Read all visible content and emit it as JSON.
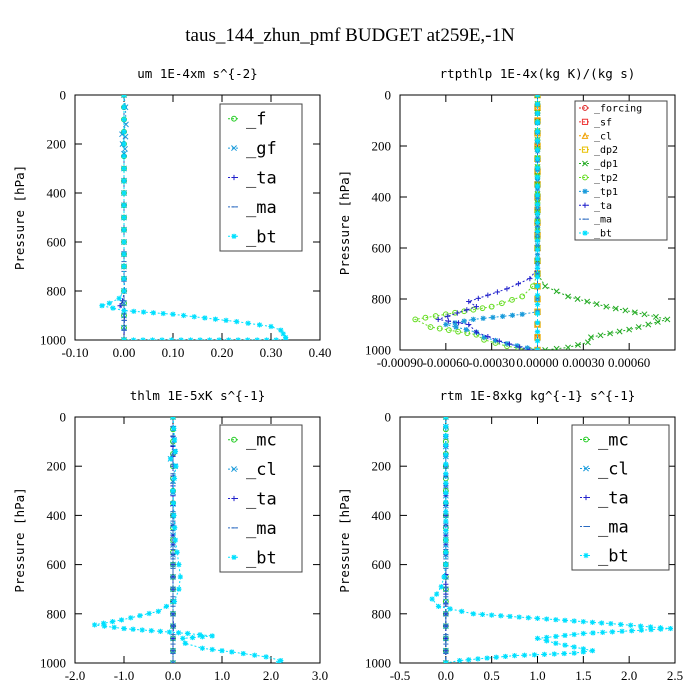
{
  "figure_title": "taus_144_zhun_pmf  BUDGET at259E,-1N",
  "colors": {
    "f": "#22cc22",
    "gf": "#1a9bdb",
    "ta": "#2222cc",
    "ma": "#2a6ac0",
    "bt": "#00e0ff",
    "forcing": "#dd2222",
    "sf": "#ee3333",
    "cl": "#f0a000",
    "dp2": "#e8c000",
    "dp1": "#22aa22",
    "tp2": "#66dd22",
    "tp1": "#1a9bdb",
    "mc": "#22cc22"
  },
  "chart_data": [
    {
      "type": "line",
      "title": "um  1E-4xm s^{-2}",
      "ylabel": "Pressure [hPa]",
      "xlim": [
        -0.1,
        0.4
      ],
      "ylim": [
        1000,
        0
      ],
      "xticks": [
        "-0.10",
        "0.00",
        "0.10",
        "0.20",
        "0.30",
        "0.40"
      ],
      "xtick_values": [
        -0.1,
        0.0,
        0.1,
        0.2,
        0.3,
        0.4
      ],
      "yticks": [
        "0",
        "200",
        "400",
        "600",
        "800",
        "1000"
      ],
      "yticks_values": [
        0,
        200,
        400,
        600,
        800,
        1000
      ],
      "legend": [
        "_f",
        "_gf",
        "_ta",
        "_ma",
        "_bt"
      ],
      "legend_size": "large",
      "series": [
        {
          "name": "_f",
          "color": "#22cc22",
          "marker": "o",
          "x": [
            0,
            0,
            0,
            0,
            0,
            0,
            0,
            0,
            0,
            0,
            0
          ],
          "y": [
            0,
            100,
            200,
            300,
            400,
            500,
            600,
            700,
            800,
            900,
            1000
          ]
        },
        {
          "name": "_gf",
          "color": "#1a9bdb",
          "marker": "x",
          "x": [
            0,
            0.003,
            0.004,
            -0.004,
            0.003,
            -0.003,
            0.002,
            0,
            0,
            0,
            0,
            0,
            0,
            0,
            0,
            0,
            0,
            0
          ],
          "y": [
            0,
            50,
            120,
            160,
            170,
            200,
            220,
            240,
            300,
            400,
            500,
            600,
            700,
            800,
            850,
            900,
            950,
            1000
          ]
        },
        {
          "name": "_ta",
          "color": "#2222cc",
          "marker": "+",
          "x": [
            0,
            0,
            0,
            0,
            0,
            0,
            0,
            0,
            0.001,
            -0.003,
            -0.008,
            0.001,
            0.0
          ],
          "y": [
            0,
            100,
            200,
            300,
            400,
            500,
            600,
            700,
            800,
            840,
            860,
            880,
            1000
          ]
        },
        {
          "name": "_ma",
          "color": "#2a6ac0",
          "marker": "-",
          "x": [
            0,
            0,
            0,
            0,
            0,
            0,
            0,
            0,
            0
          ],
          "y": [
            0,
            100,
            200,
            300,
            400,
            500,
            600,
            800,
            1000
          ]
        },
        {
          "name": "_bt",
          "color": "#00e0ff",
          "marker": "*",
          "x": [
            0,
            0,
            0,
            0,
            0,
            0,
            0,
            0,
            0.0,
            -0.01,
            -0.03,
            -0.045,
            0.0,
            0.1,
            0.165,
            0.23,
            0.3,
            0.32,
            0.325,
            0.33,
            0.33,
            0.0
          ],
          "y": [
            0,
            100,
            200,
            300,
            400,
            500,
            600,
            700,
            800,
            830,
            850,
            860,
            880,
            895,
            910,
            925,
            945,
            960,
            975,
            990,
            1000,
            1000
          ]
        }
      ]
    },
    {
      "type": "line",
      "title": "rtpthlp  1E-4x(kg K)/(kg s)",
      "ylabel": "Pressure [hPa]",
      "xlim": [
        -0.0009,
        0.0009
      ],
      "ylim": [
        1000,
        0
      ],
      "xticks": [
        "-0.00090",
        "-0.00060",
        "-0.00030",
        "0.00000",
        "0.00030",
        "0.00060"
      ],
      "xtick_values": [
        -0.0009,
        -0.0006,
        -0.0003,
        0.0,
        0.0003,
        0.0006
      ],
      "yticks": [
        "0",
        "200",
        "400",
        "600",
        "800",
        "1000"
      ],
      "yticks_values": [
        0,
        200,
        400,
        600,
        800,
        1000
      ],
      "legend": [
        "_forcing",
        "_sf",
        "_cl",
        "_dp2",
        "_dp1",
        "_tp2",
        "_tp1",
        "_ta",
        "_ma",
        "_bt"
      ],
      "legend_size": "small",
      "series": [
        {
          "name": "_forcing",
          "color": "#dd2222",
          "marker": "o",
          "x": [
            0,
            0,
            0,
            0,
            0,
            0,
            0,
            0,
            0,
            0,
            0
          ],
          "y": [
            0,
            100,
            200,
            300,
            400,
            500,
            600,
            700,
            800,
            900,
            1000
          ]
        },
        {
          "name": "_sf",
          "color": "#ee3333",
          "marker": "s",
          "x": [
            0,
            0,
            0,
            0,
            0,
            0,
            0,
            0,
            0,
            0,
            0
          ],
          "y": [
            0,
            100,
            200,
            300,
            400,
            500,
            600,
            700,
            800,
            900,
            1000
          ]
        },
        {
          "name": "_cl",
          "color": "#f0a000",
          "marker": "^",
          "x": [
            0,
            0,
            0,
            0,
            0,
            0,
            0,
            0,
            0,
            0,
            0
          ],
          "y": [
            0,
            100,
            200,
            300,
            400,
            500,
            600,
            700,
            800,
            900,
            1000
          ]
        },
        {
          "name": "_dp2",
          "color": "#e8c000",
          "marker": "s",
          "x": [
            0,
            0,
            0,
            0,
            0,
            0,
            0,
            0,
            0,
            0,
            0
          ],
          "y": [
            0,
            100,
            200,
            300,
            400,
            500,
            600,
            700,
            800,
            900,
            1000
          ]
        },
        {
          "name": "_dp1",
          "color": "#22aa22",
          "marker": "x",
          "x": [
            0,
            0,
            0,
            5e-05,
            0.0002,
            0.00045,
            0.0007,
            0.00085,
            0.0006,
            0.00035,
            0.00033,
            0.0002,
            5e-05
          ],
          "y": [
            0,
            600,
            700,
            750,
            790,
            830,
            860,
            880,
            920,
            950,
            970,
            990,
            1000
          ]
        },
        {
          "name": "_tp2",
          "color": "#66dd22",
          "marker": "o",
          "x": [
            0,
            0,
            0,
            -3e-05,
            -0.0001,
            -0.0003,
            -0.0006,
            -0.0008,
            -0.0007,
            -0.0004,
            -0.00035,
            -0.0002,
            -5e-05
          ],
          "y": [
            0,
            600,
            700,
            750,
            790,
            830,
            860,
            880,
            910,
            940,
            960,
            985,
            1000
          ]
        },
        {
          "name": "_tp1",
          "color": "#1a9bdb",
          "marker": "*",
          "x": [
            0,
            0,
            0,
            0,
            -0.0001,
            -0.00042,
            -0.0006,
            -0.0004,
            -0.00035,
            -0.0002,
            0
          ],
          "y": [
            0,
            700,
            800,
            850,
            860,
            880,
            900,
            930,
            950,
            975,
            1000
          ]
        },
        {
          "name": "_ta",
          "color": "#2222cc",
          "marker": "+",
          "x": [
            0,
            0,
            -5e-05,
            -0.0002,
            -0.00045,
            -0.0004,
            -0.00065,
            -0.00045,
            -0.0004,
            -0.00025,
            -5e-05
          ],
          "y": [
            0,
            680,
            720,
            760,
            810,
            830,
            880,
            900,
            930,
            965,
            1000
          ]
        },
        {
          "name": "_ma",
          "color": "#2a6ac0",
          "marker": "-",
          "x": [
            0,
            0,
            0
          ],
          "y": [
            0,
            500,
            1000
          ]
        },
        {
          "name": "_bt",
          "color": "#00e0ff",
          "marker": "*",
          "x": [
            0,
            0,
            0
          ],
          "y": [
            0,
            500,
            1000
          ]
        }
      ]
    },
    {
      "type": "line",
      "title": "thlm  1E-5xK s^{-1}",
      "ylabel": "Pressure [hPa]",
      "xlim": [
        -2.0,
        3.0
      ],
      "ylim": [
        1000,
        0
      ],
      "xticks": [
        "-2.0",
        "-1.0",
        "0.0",
        "1.0",
        "2.0",
        "3.0"
      ],
      "xtick_values": [
        -2.0,
        -1.0,
        0.0,
        1.0,
        2.0,
        3.0
      ],
      "yticks": [
        "0",
        "200",
        "400",
        "600",
        "800",
        "1000"
      ],
      "yticks_values": [
        0,
        200,
        400,
        600,
        800,
        1000
      ],
      "legend": [
        "_mc",
        "_cl",
        "_ta",
        "_ma",
        "_bt"
      ],
      "legend_size": "large",
      "series": [
        {
          "name": "_mc",
          "color": "#22cc22",
          "marker": "o",
          "x": [
            0,
            0,
            0,
            0,
            0,
            0,
            0,
            0,
            0,
            0,
            0
          ],
          "y": [
            0,
            100,
            200,
            300,
            400,
            500,
            600,
            700,
            800,
            900,
            1000
          ]
        },
        {
          "name": "_cl",
          "color": "#1a9bdb",
          "marker": "x",
          "x": [
            0,
            0.03,
            -0.05,
            0.04,
            0,
            0,
            0,
            0,
            0,
            0,
            0
          ],
          "y": [
            0,
            140,
            170,
            200,
            260,
            400,
            600,
            700,
            800,
            900,
            1000
          ]
        },
        {
          "name": "_ta",
          "color": "#2222cc",
          "marker": "+",
          "x": [
            0,
            0,
            0,
            0,
            0,
            0,
            0.01,
            0,
            0
          ],
          "y": [
            0,
            200,
            400,
            600,
            700,
            800,
            850,
            900,
            1000
          ]
        },
        {
          "name": "_ma",
          "color": "#2a6ac0",
          "marker": "-",
          "x": [
            0,
            0,
            0
          ],
          "y": [
            0,
            500,
            1000
          ]
        },
        {
          "name": "_bt",
          "color": "#00e0ff",
          "marker": "*",
          "x": [
            0,
            0.05,
            -0.05,
            0.06,
            0,
            0.02,
            0.05,
            0.12,
            0.15,
            0.12,
            0.03,
            -0.3,
            -1.05,
            -1.6,
            -1.0,
            0.3,
            0.8,
            0.2,
            0.25,
            0.6,
            1.2,
            1.9,
            2.2,
            2.15
          ],
          "y": [
            0,
            140,
            170,
            200,
            300,
            400,
            500,
            600,
            650,
            700,
            750,
            790,
            825,
            845,
            860,
            880,
            890,
            900,
            920,
            940,
            955,
            975,
            990,
            1000
          ]
        }
      ]
    },
    {
      "type": "line",
      "title": "rtm  1E-8xkg kg^{-1} s^{-1}",
      "ylabel": "Pressure [hPa]",
      "xlim": [
        -0.5,
        2.5
      ],
      "ylim": [
        1000,
        0
      ],
      "xticks": [
        "-0.5",
        "0.0",
        "0.5",
        "1.0",
        "1.5",
        "2.0",
        "2.5"
      ],
      "xtick_values": [
        -0.5,
        0.0,
        0.5,
        1.0,
        1.5,
        2.0,
        2.5
      ],
      "yticks": [
        "0",
        "200",
        "400",
        "600",
        "800",
        "1000"
      ],
      "yticks_values": [
        0,
        200,
        400,
        600,
        800,
        1000
      ],
      "legend": [
        "_mc",
        "_cl",
        "_ta",
        "_ma",
        "_bt"
      ],
      "legend_size": "large",
      "series": [
        {
          "name": "_mc",
          "color": "#22cc22",
          "marker": "o",
          "x": [
            0,
            0,
            0,
            0,
            0,
            0,
            0,
            0,
            0,
            0,
            0
          ],
          "y": [
            0,
            100,
            200,
            300,
            400,
            500,
            600,
            700,
            800,
            900,
            1000
          ]
        },
        {
          "name": "_cl",
          "color": "#1a9bdb",
          "marker": "x",
          "x": [
            0,
            0,
            0,
            0,
            0,
            0,
            0,
            0,
            0
          ],
          "y": [
            0,
            200,
            400,
            600,
            700,
            800,
            900,
            950,
            1000
          ]
        },
        {
          "name": "_ta",
          "color": "#2222cc",
          "marker": "+",
          "x": [
            0,
            0,
            0,
            0,
            0,
            0,
            0
          ],
          "y": [
            0,
            200,
            400,
            600,
            800,
            900,
            1000
          ]
        },
        {
          "name": "_ma",
          "color": "#2a6ac0",
          "marker": "-",
          "x": [
            0,
            0,
            0
          ],
          "y": [
            0,
            500,
            1000
          ]
        },
        {
          "name": "_bt",
          "color": "#00e0ff",
          "marker": "*",
          "x": [
            0,
            0,
            0,
            -0.02,
            -0.05,
            -0.1,
            -0.15,
            -0.08,
            0.3,
            1.8,
            2.45,
            1.5,
            1.0,
            1.2,
            1.6,
            1.4,
            0.75,
            0.15,
            0.0
          ],
          "y": [
            0,
            500,
            600,
            650,
            690,
            720,
            740,
            770,
            800,
            840,
            860,
            880,
            900,
            920,
            950,
            960,
            970,
            990,
            1000
          ]
        }
      ]
    }
  ]
}
